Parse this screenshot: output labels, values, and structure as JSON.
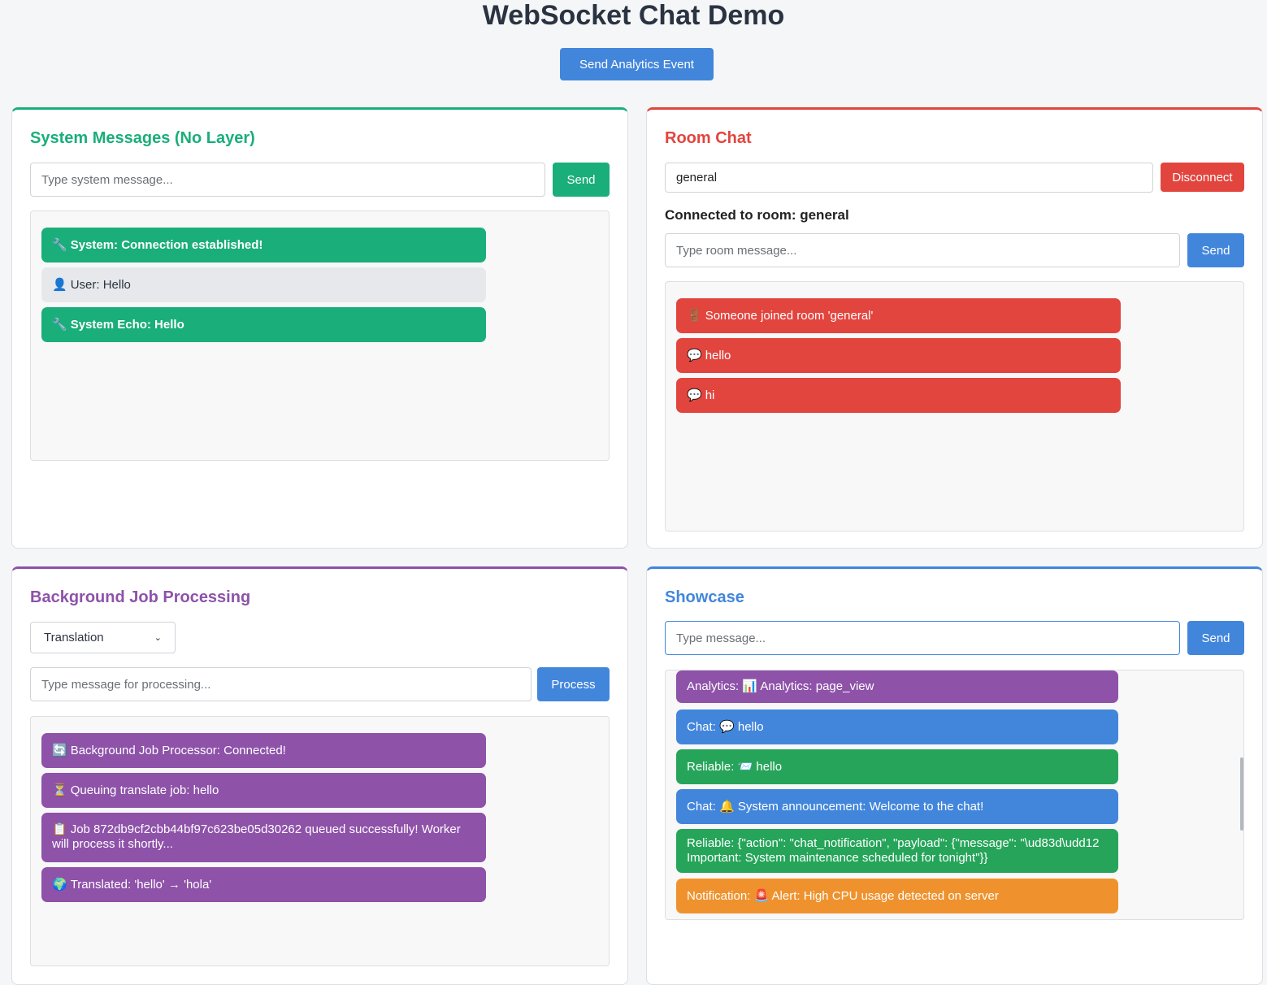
{
  "title": "WebSocket Chat Demo",
  "analytics_button": "Send Analytics Event",
  "system": {
    "heading": "System Messages (No Layer)",
    "input_placeholder": "Type system message...",
    "send": "Send",
    "messages": [
      {
        "icon": "🔧",
        "text": "System: Connection established!"
      },
      {
        "icon": "👤",
        "text": "User: Hello"
      },
      {
        "icon": "🔧",
        "text": "System Echo: Hello"
      }
    ]
  },
  "room": {
    "heading": "Room Chat",
    "room_value": "general",
    "disconnect": "Disconnect",
    "connected_label": "Connected to room: general",
    "input_placeholder": "Type room message...",
    "send": "Send",
    "messages": [
      {
        "icon": "🚪",
        "text": "Someone joined room 'general'"
      },
      {
        "icon": "💬",
        "text": "hello"
      },
      {
        "icon": "💬",
        "text": "hi"
      }
    ]
  },
  "job": {
    "heading": "Background Job Processing",
    "select_value": "Translation",
    "input_placeholder": "Type message for processing...",
    "process": "Process",
    "messages": [
      {
        "icon": "🔄",
        "text": "Background Job Processor: Connected!"
      },
      {
        "icon": "⏳",
        "text": "Queuing translate job: hello"
      },
      {
        "icon": "📋",
        "text": "Job 872db9cf2cbb44bf97c623be05d30262 queued successfully! Worker will process it shortly..."
      },
      {
        "icon": "🌍",
        "text": "Translated: 'hello' → 'hola'"
      }
    ]
  },
  "showcase": {
    "heading": "Showcase",
    "input_placeholder": "Type message...",
    "send": "Send",
    "messages": [
      {
        "icon": "📊",
        "text": "Analytics: 📊 Analytics: page_view"
      },
      {
        "icon": "💬",
        "text": "Chat: 💬 hello"
      },
      {
        "icon": "📨",
        "text": "Reliable: 📨 hello"
      },
      {
        "icon": "🔔",
        "text": "Chat: 🔔 System announcement: Welcome to the chat!"
      },
      {
        "icon": "",
        "text": "Reliable: {\"action\": \"chat_notification\", \"payload\": {\"message\": \"\\ud83d\\udd12 Important: System maintenance scheduled for tonight\"}}"
      },
      {
        "icon": "🚨",
        "text": "Notification: 🚨 Alert: High CPU usage detected on server"
      }
    ]
  },
  "colors": {
    "system": "#1aae7a",
    "room": "#e2453e",
    "job": "#8e52a9",
    "showcase": "#4286dc",
    "reliable": "#26a55a",
    "notification": "#ef922e"
  }
}
